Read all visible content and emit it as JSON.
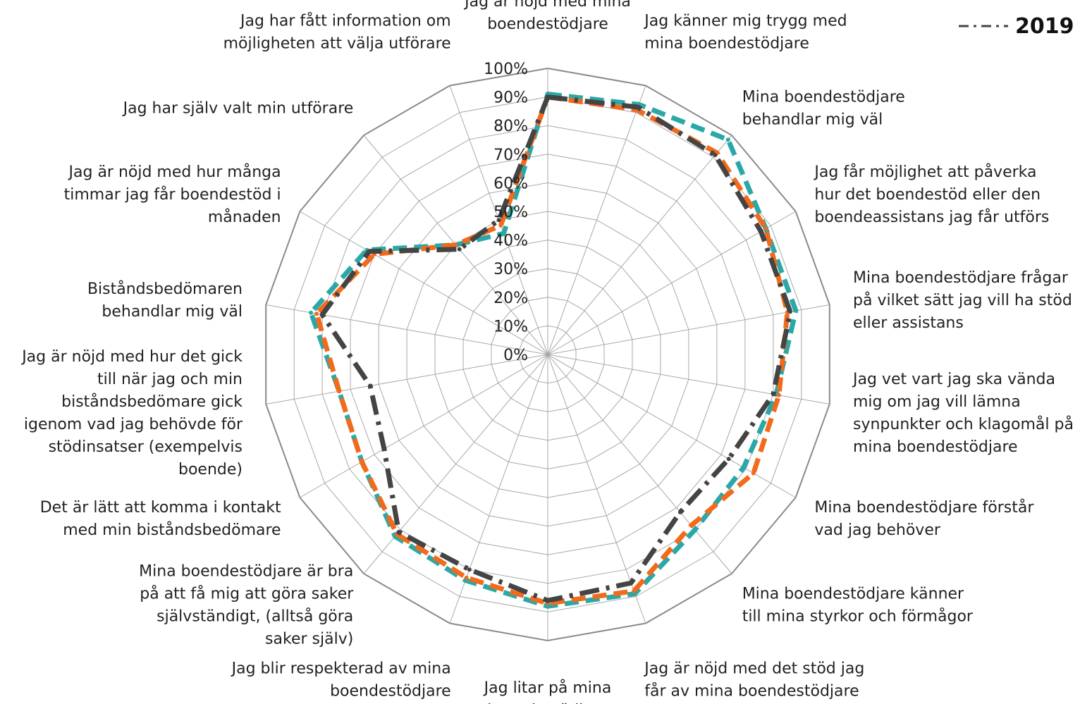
{
  "chart_data": {
    "type": "radar",
    "ticks": [
      "0%",
      "10%",
      "20%",
      "30%",
      "40%",
      "50%",
      "60%",
      "70%",
      "80%",
      "90%",
      "100%"
    ],
    "rlim": [
      0,
      100
    ],
    "grid": true,
    "legend_position": "top-right",
    "categories": [
      [
        "Jag är nöjd med mina",
        "boendestödjare"
      ],
      [
        "Jag känner mig trygg med",
        "mina boendestödjare"
      ],
      [
        "Mina boendestödjare",
        "behandlar mig väl"
      ],
      [
        "Jag får möjlighet att påverka",
        "hur det boendestöd eller den",
        "boendeassistans jag får utförs"
      ],
      [
        "Mina boendestödjare frågar",
        "på vilket sätt jag vill ha stöd",
        "eller assistans"
      ],
      [
        "Jag vet vart jag ska vända",
        "mig om jag vill lämna",
        "synpunkter och klagomål på",
        "mina boendestödjare"
      ],
      [
        "Mina boendestödjare förstår",
        "vad jag behöver"
      ],
      [
        "Mina boendestödjare känner",
        "till mina styrkor och förmågor"
      ],
      [
        "Jag är nöjd med det stöd jag",
        "får av mina boendestödjare"
      ],
      [
        "Jag litar på mina",
        "boendestödjare"
      ],
      [
        "Jag blir respekterad av mina",
        "boendestödjare"
      ],
      [
        "Mina boendestödjare är bra",
        "på att få mig att göra saker",
        "självständigt, (alltså göra",
        "saker själv)"
      ],
      [
        "Det är lätt att komma i kontakt",
        "med min biståndsbedömare"
      ],
      [
        "Jag är nöjd med hur det gick",
        "till när jag och min",
        "biståndsbedömare gick",
        "igenom vad jag behövde för",
        "stödinsatser (exempelvis",
        "boende)"
      ],
      [
        "Biståndsbedömaren",
        "behandlar mig väl"
      ],
      [
        "Jag är nöjd med hur många",
        "timmar jag får boendestöd i",
        "månaden"
      ],
      [
        "Jag har själv valt min utförare"
      ],
      [
        "Jag har fått information om",
        "möjligheten att välja utförare"
      ]
    ],
    "series": [
      {
        "color": "#2aa8a8",
        "style": "dashed",
        "values": [
          91,
          93,
          98,
          88,
          88,
          81,
          79,
          80,
          89,
          88,
          84,
          83,
          75,
          74,
          84,
          73,
          50,
          45
        ]
      },
      {
        "color": "#f26a1b",
        "style": "dashed",
        "values": [
          90,
          91,
          92,
          88,
          85,
          82,
          83,
          78,
          88,
          87,
          83,
          82,
          75,
          74,
          82,
          70,
          50,
          48
        ]
      },
      {
        "name": "2019",
        "color": "#444444",
        "style": "dash-dot",
        "values": [
          90,
          92,
          91,
          86,
          86,
          80,
          73,
          72,
          85,
          86,
          80,
          81,
          66,
          63,
          80,
          72,
          48,
          50
        ]
      }
    ]
  }
}
